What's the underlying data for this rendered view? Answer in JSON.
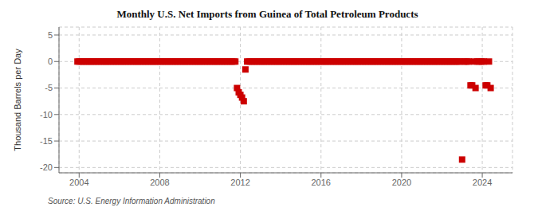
{
  "chart_data": {
    "type": "scatter",
    "title": "Monthly U.S. Net Imports from Guinea of Total Petroleum Products",
    "ylabel": "Thousand Barrels per Day",
    "annotations": [
      "Source: U.S. Energy Information Administration"
    ],
    "color": "#cc0000",
    "marker": "square",
    "grid": true,
    "xlim": [
      2003.0,
      2025.5
    ],
    "ylim": [
      -21,
      6.5
    ],
    "xticks": [
      2004,
      2008,
      2012,
      2016,
      2020,
      2024
    ],
    "yticks": [
      5,
      0,
      -5,
      -10,
      -15,
      -20
    ],
    "x": [
      2003.917,
      2004.0,
      2004.083,
      2004.167,
      2004.25,
      2004.333,
      2004.417,
      2004.5,
      2004.583,
      2004.667,
      2004.75,
      2004.833,
      2004.917,
      2005.0,
      2005.083,
      2005.167,
      2005.25,
      2005.333,
      2005.417,
      2005.5,
      2005.583,
      2005.667,
      2005.75,
      2005.833,
      2005.917,
      2006.0,
      2006.083,
      2006.167,
      2006.25,
      2006.333,
      2006.417,
      2006.5,
      2006.583,
      2006.667,
      2006.75,
      2006.833,
      2006.917,
      2007.0,
      2007.083,
      2007.167,
      2007.25,
      2007.333,
      2007.417,
      2007.5,
      2007.583,
      2007.667,
      2007.75,
      2007.833,
      2007.917,
      2008.0,
      2008.083,
      2008.167,
      2008.25,
      2008.333,
      2008.417,
      2008.5,
      2008.583,
      2008.667,
      2008.75,
      2008.833,
      2008.917,
      2009.0,
      2009.083,
      2009.167,
      2009.25,
      2009.333,
      2009.417,
      2009.5,
      2009.583,
      2009.667,
      2009.75,
      2009.833,
      2009.917,
      2010.0,
      2010.083,
      2010.167,
      2010.25,
      2010.333,
      2010.417,
      2010.5,
      2010.583,
      2010.667,
      2010.75,
      2010.833,
      2010.917,
      2011.0,
      2011.083,
      2011.167,
      2011.25,
      2011.333,
      2011.417,
      2011.5,
      2011.583,
      2011.667,
      2011.75,
      2011.833,
      2011.917,
      2012.0,
      2012.083,
      2012.167,
      2012.25,
      2012.333,
      2012.417,
      2012.5,
      2012.583,
      2012.667,
      2012.75,
      2012.833,
      2012.917,
      2013.0,
      2013.083,
      2013.167,
      2013.25,
      2013.333,
      2013.417,
      2013.5,
      2013.583,
      2013.667,
      2013.75,
      2013.833,
      2013.917,
      2014.0,
      2014.083,
      2014.167,
      2014.25,
      2014.333,
      2014.417,
      2014.5,
      2014.583,
      2014.667,
      2014.75,
      2014.833,
      2014.917,
      2015.0,
      2015.083,
      2015.167,
      2015.25,
      2015.333,
      2015.417,
      2015.5,
      2015.583,
      2015.667,
      2015.75,
      2015.833,
      2015.917,
      2016.0,
      2016.083,
      2016.167,
      2016.25,
      2016.333,
      2016.417,
      2016.5,
      2016.583,
      2016.667,
      2016.75,
      2016.833,
      2016.917,
      2017.0,
      2017.083,
      2017.167,
      2017.25,
      2017.333,
      2017.417,
      2017.5,
      2017.583,
      2017.667,
      2017.75,
      2017.833,
      2017.917,
      2018.0,
      2018.083,
      2018.167,
      2018.25,
      2018.333,
      2018.417,
      2018.5,
      2018.583,
      2018.667,
      2018.75,
      2018.833,
      2018.917,
      2019.0,
      2019.083,
      2019.167,
      2019.25,
      2019.333,
      2019.417,
      2019.5,
      2019.583,
      2019.667,
      2019.75,
      2019.833,
      2019.917,
      2020.0,
      2020.083,
      2020.167,
      2020.25,
      2020.333,
      2020.417,
      2020.5,
      2020.583,
      2020.667,
      2020.75,
      2020.833,
      2020.917,
      2021.0,
      2021.083,
      2021.167,
      2021.25,
      2021.333,
      2021.417,
      2021.5,
      2021.583,
      2021.667,
      2021.75,
      2021.833,
      2021.917,
      2022.0,
      2022.083,
      2022.167,
      2022.25,
      2022.333,
      2022.417,
      2022.5,
      2022.583,
      2022.667,
      2022.75,
      2022.833,
      2022.917,
      2023.0,
      2023.083,
      2023.167,
      2023.25,
      2023.333,
      2023.417,
      2023.5,
      2023.583,
      2023.667,
      2023.75,
      2023.833,
      2023.917,
      2024.0,
      2024.083,
      2024.167,
      2024.25,
      2024.333,
      2024.417
    ],
    "values": [
      0,
      0,
      0,
      0,
      0,
      0,
      0,
      0,
      0,
      0,
      0,
      0,
      0,
      0,
      0,
      0,
      0,
      0,
      0,
      0,
      0,
      0,
      0,
      0,
      0,
      0,
      0,
      0,
      0,
      0,
      0,
      0,
      0,
      0,
      0,
      0,
      0,
      0,
      0,
      0,
      0,
      0,
      0,
      0,
      0,
      0,
      0,
      0,
      0,
      0,
      0,
      0,
      0,
      0,
      0,
      0,
      0,
      0,
      0,
      0,
      0,
      0,
      0,
      0,
      0,
      0,
      0,
      0,
      0,
      0,
      0,
      0,
      0,
      0,
      0,
      0,
      0,
      0,
      0,
      0,
      0,
      0,
      0,
      0,
      0,
      0,
      0,
      0,
      0,
      0,
      0,
      0,
      0,
      0,
      0,
      -5.0,
      -5.8,
      -6.3,
      -6.8,
      -7.5,
      -1.5,
      0,
      0,
      0,
      0,
      0,
      0,
      0,
      0,
      0,
      0,
      0,
      0,
      0,
      0,
      0,
      0,
      0,
      0,
      0,
      0,
      0,
      0,
      0,
      0,
      0,
      0,
      0,
      0,
      0,
      0,
      0,
      0,
      0,
      0,
      0,
      0,
      0,
      0,
      0,
      0,
      0,
      0,
      0,
      0,
      0,
      0,
      0,
      0,
      0,
      0,
      0,
      0,
      0,
      0,
      0,
      0,
      0,
      0,
      0,
      0,
      0,
      0,
      0,
      0,
      0,
      0,
      0,
      0,
      0,
      0,
      0,
      0,
      0,
      0,
      0,
      0,
      0,
      0,
      0,
      0,
      0,
      0,
      0,
      0,
      0,
      0,
      0,
      0,
      0,
      0,
      0,
      0,
      0,
      0,
      0,
      0,
      0,
      0,
      0,
      0,
      0,
      0,
      0,
      0,
      0,
      0,
      0,
      0,
      0,
      0,
      0,
      0,
      0,
      0,
      0,
      0,
      0,
      0,
      0,
      0,
      0,
      0,
      0,
      0,
      0,
      0,
      0,
      0,
      -18.5,
      0,
      0,
      0,
      0,
      -4.5,
      -4.5,
      0,
      -5.0,
      0,
      0,
      0,
      0,
      0,
      -4.5,
      -4.5,
      0,
      -5.0
    ]
  }
}
